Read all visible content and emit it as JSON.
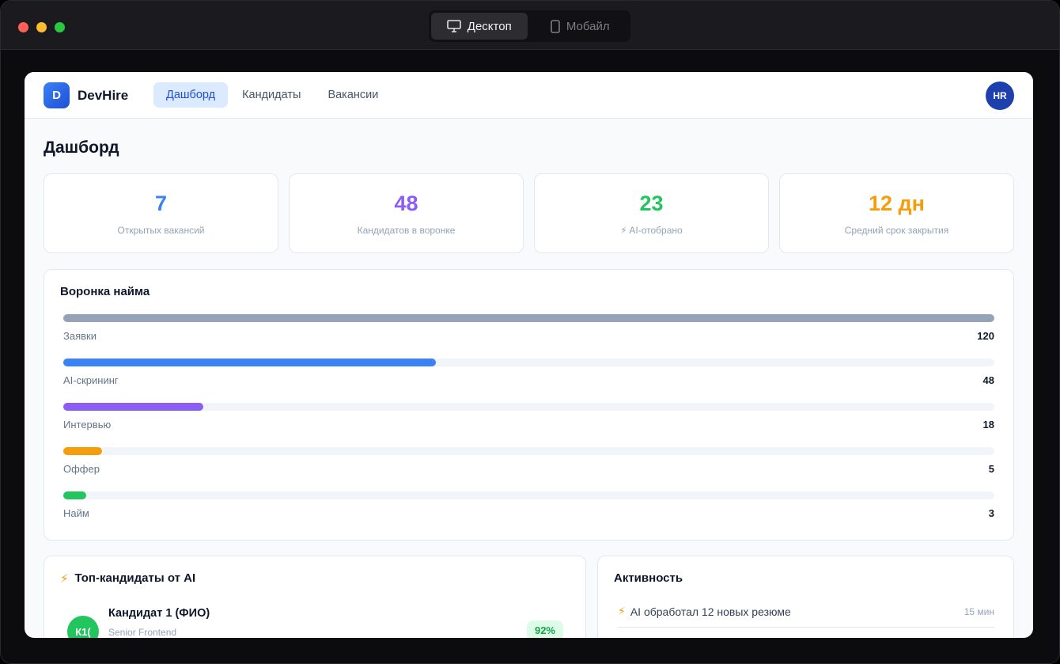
{
  "window": {
    "tabs": [
      "Десктоп",
      "Мобайл"
    ]
  },
  "app": {
    "logo": "D",
    "name": "DevHire",
    "nav": [
      "Дашборд",
      "Кандидаты",
      "Вакансии"
    ],
    "avatar": "HR"
  },
  "page_title": "Дашборд",
  "stats": [
    {
      "value": 7,
      "label": "Открытых вакансий",
      "color": "#3b82f6"
    },
    {
      "value": 48,
      "label": "Кандидатов в воронке",
      "color": "#8b5cf6"
    },
    {
      "value": 23,
      "label": "⚡ AI-отобрано",
      "color": "#22c55e"
    },
    {
      "value": "12 дн",
      "label": "Средний срок закрытия",
      "color": "#f59e0b"
    }
  ],
  "funnel": {
    "title": "Воронка найма",
    "stages": [
      {
        "label": "Заявки",
        "value": 120,
        "color": "#94a3b8"
      },
      {
        "label": "AI-скрининг",
        "value": 48,
        "color": "#3b82f6"
      },
      {
        "label": "Интервью",
        "value": 18,
        "color": "#8b5cf6"
      },
      {
        "label": "Оффер",
        "value": 5,
        "color": "#f59e0b"
      },
      {
        "label": "Найм",
        "value": 3,
        "color": "#22c55e"
      }
    ]
  },
  "top": {
    "icon": "⚡",
    "title": "Топ-кандидаты от AI",
    "candidates": [
      {
        "initials": "К1(",
        "name": "Кандидат 1 (ФИО)",
        "role": "Senior Frontend",
        "score": "92%"
      }
    ]
  },
  "activity": {
    "title": "Активность",
    "items": [
      {
        "icon": "⚡",
        "text": "AI обработал 12 новых резюме",
        "time": "15 мин"
      }
    ]
  }
}
